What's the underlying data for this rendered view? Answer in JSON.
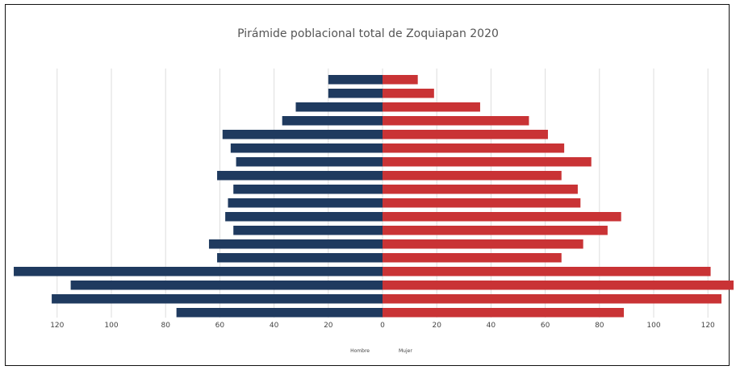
{
  "chart_data": {
    "type": "bar",
    "orientation": "horizontal",
    "title": "Pirámide poblacional total de Zoquiapan 2020",
    "xlabel": "",
    "ylabel": "",
    "x_ticks": [
      120,
      100,
      80,
      60,
      40,
      20,
      0,
      20,
      40,
      60,
      80,
      100,
      120
    ],
    "x_range": [
      -135,
      130
    ],
    "grid": true,
    "legend_placement": "bottom-center",
    "series": [
      {
        "name": "Hombre",
        "color": "#1f3a5f",
        "values": [
          20,
          20,
          32,
          37,
          59,
          56,
          54,
          61,
          55,
          57,
          58,
          55,
          64,
          61,
          136,
          115,
          122,
          76
        ]
      },
      {
        "name": "Mujer",
        "color": "#c93335",
        "values": [
          13,
          19,
          36,
          54,
          61,
          67,
          77,
          66,
          72,
          73,
          88,
          83,
          74,
          66,
          121,
          130,
          125,
          89
        ]
      }
    ]
  }
}
